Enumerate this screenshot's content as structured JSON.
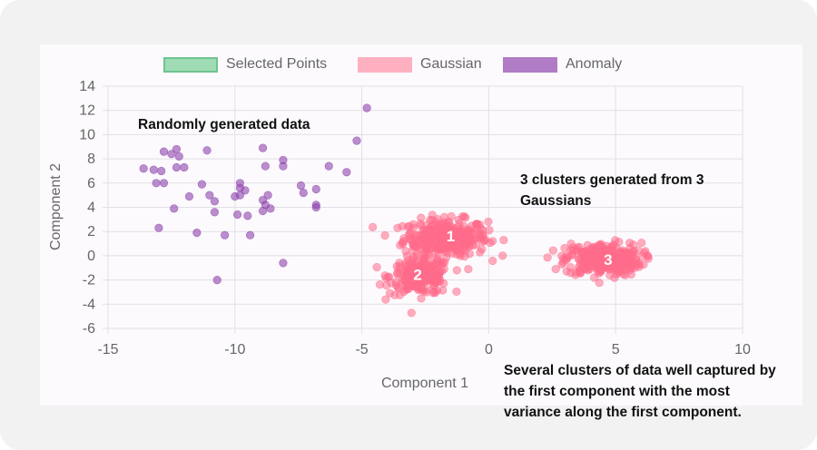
{
  "chart_data": {
    "type": "scatter",
    "title": "",
    "xlabel": "Component 1",
    "ylabel": "Component 2",
    "xlim": [
      -15,
      10
    ],
    "ylim": [
      -6,
      14
    ],
    "x_ticks": [
      -15,
      -10,
      -5,
      0,
      5,
      10
    ],
    "y_ticks": [
      -6,
      -4,
      -2,
      0,
      2,
      4,
      6,
      8,
      10,
      12,
      14
    ],
    "grid": true,
    "legend_position": "top-center",
    "series": [
      {
        "name": "Selected Points",
        "color": "#7fcf9b",
        "points": []
      },
      {
        "name": "Gaussian",
        "color": "#ff6b8a",
        "clusters": [
          {
            "label": "1",
            "center": [
              -1.7,
              1.5
            ],
            "spread": [
              1.1,
              1.0
            ],
            "n": 320
          },
          {
            "label": "2",
            "center": [
              -2.7,
              -1.7
            ],
            "spread": [
              0.8,
              1.0
            ],
            "n": 220
          },
          {
            "label": "3",
            "center": [
              4.5,
              -0.3
            ],
            "spread": [
              1.0,
              0.9
            ],
            "n": 320
          }
        ]
      },
      {
        "name": "Anomaly",
        "color": "#8e44ad",
        "points": [
          [
            -13.6,
            7.2
          ],
          [
            -13.2,
            7.1
          ],
          [
            -12.9,
            7.0
          ],
          [
            -12.8,
            8.6
          ],
          [
            -12.5,
            8.4
          ],
          [
            -12.3,
            8.8
          ],
          [
            -12.2,
            8.2
          ],
          [
            -12.0,
            7.3
          ],
          [
            -12.3,
            7.3
          ],
          [
            -13.1,
            6.0
          ],
          [
            -12.8,
            6.0
          ],
          [
            -11.8,
            4.9
          ],
          [
            -12.4,
            3.9
          ],
          [
            -13.0,
            2.3
          ],
          [
            -11.5,
            1.9
          ],
          [
            -11.1,
            8.7
          ],
          [
            -11.3,
            5.9
          ],
          [
            -11.0,
            5.0
          ],
          [
            -10.8,
            4.5
          ],
          [
            -10.8,
            3.6
          ],
          [
            -10.4,
            1.7
          ],
          [
            -10.7,
            -2.0
          ],
          [
            -10.0,
            4.9
          ],
          [
            -9.8,
            5.0
          ],
          [
            -9.8,
            5.6
          ],
          [
            -9.8,
            6.0
          ],
          [
            -9.9,
            3.4
          ],
          [
            -9.6,
            5.4
          ],
          [
            -9.5,
            3.3
          ],
          [
            -9.4,
            1.7
          ],
          [
            -8.9,
            8.9
          ],
          [
            -8.8,
            7.4
          ],
          [
            -8.7,
            5.0
          ],
          [
            -8.9,
            4.6
          ],
          [
            -8.8,
            4.2
          ],
          [
            -8.9,
            3.7
          ],
          [
            -8.6,
            3.9
          ],
          [
            -8.1,
            7.4
          ],
          [
            -8.1,
            7.9
          ],
          [
            -8.1,
            -0.6
          ],
          [
            -7.4,
            5.8
          ],
          [
            -7.3,
            5.2
          ],
          [
            -6.8,
            5.5
          ],
          [
            -6.8,
            4.2
          ],
          [
            -6.8,
            4.0
          ],
          [
            -6.3,
            7.4
          ],
          [
            -5.6,
            6.9
          ],
          [
            -5.2,
            9.5
          ],
          [
            -4.8,
            12.2
          ]
        ]
      }
    ],
    "annotations": [
      "Randomly generated data",
      "3 clusters generated from 3 Gaussians",
      "Several clusters of data well captured by the first component with the most variance along the first component."
    ],
    "cluster_labels": [
      "1",
      "2",
      "3"
    ]
  }
}
